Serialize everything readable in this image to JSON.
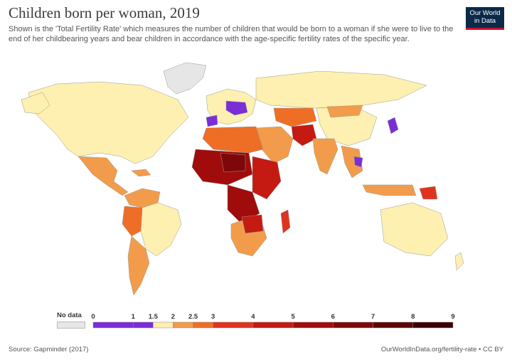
{
  "header": {
    "title": "Children born per woman, 2019",
    "subtitle": "Shown is the 'Total Fertility Rate' which measures the number of children that would be born to a woman if she were to live to the end of her childbearing years and bear children in accordance with the age-specific fertility rates of the specific year.",
    "logo_line1": "Our World",
    "logo_line2": "in Data"
  },
  "legend": {
    "no_data_label": "No data",
    "no_data_color": "#e6e6e6",
    "stops": [
      "0",
      "1",
      "1.5",
      "2",
      "2.5",
      "3",
      "4",
      "5",
      "6",
      "7",
      "8",
      "9"
    ],
    "colors": [
      "#7b2ed6",
      "#7b2ed6",
      "#fdf0b0",
      "#f29c4b",
      "#ef6e26",
      "#e0331e",
      "#c41a12",
      "#a00c0b",
      "#7e0809",
      "#5e0505",
      "#3c0203"
    ]
  },
  "map": {
    "colors": {
      "ocean": "#ffffff",
      "land_default": "#fdf0b0",
      "lt_1_5": "#7b2ed6",
      "1_5_to_2": "#fdf0b0",
      "2_to_2_5": "#f29c4b",
      "2_5_to_3": "#ef6e26",
      "3_to_4": "#e0331e",
      "4_to_5": "#c41a12",
      "5_to_6": "#a00c0b",
      "6_to_7": "#7e0809",
      "no_data": "#e6e6e6",
      "border": "#999999"
    }
  },
  "footer": {
    "source": "Source: Gapminder (2017)",
    "url": "OurWorldInData.org/fertility-rate • CC BY"
  }
}
